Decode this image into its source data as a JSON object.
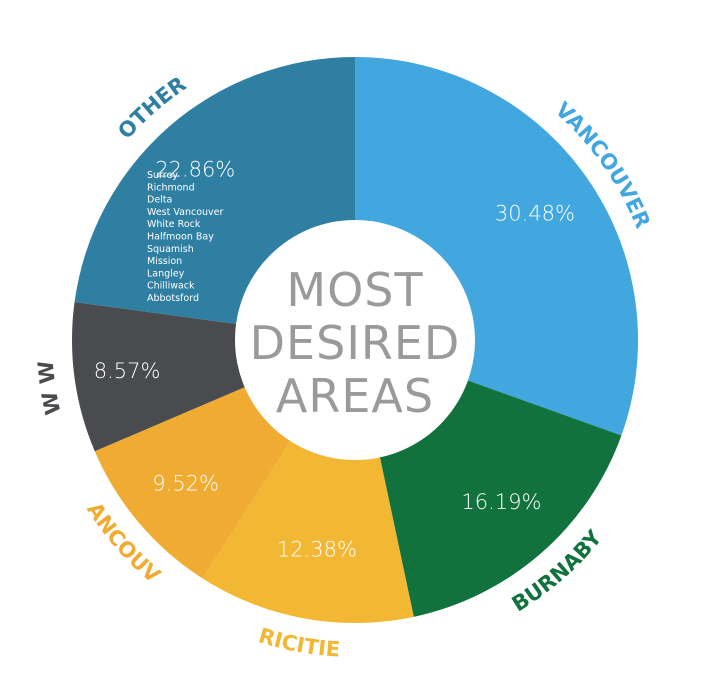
{
  "chart_data": {
    "type": "pie",
    "title": "MOST DESIRED AREAS",
    "title_lines": [
      "MOST",
      "DESIRED",
      "AREAS"
    ],
    "center_hole": true,
    "categories": [
      "VANCOUVER",
      "BURNABY",
      "TRICITIES",
      "N.VANCOUVER",
      "NEW WEST",
      "OTHER"
    ],
    "values": [
      30.48,
      16.19,
      12.38,
      9.52,
      8.57,
      22.86
    ],
    "labels": [
      "30.48%",
      "16.19%",
      "12.38%",
      "9.52%",
      "8.57%",
      "22.86%"
    ],
    "colors": [
      "#41a7de",
      "#11723d",
      "#f2b733",
      "#f0ab32",
      "#4a4b4f",
      "#2e7fa2"
    ],
    "label_colors": [
      "#41a7de",
      "#11723d",
      "#f2b733",
      "#f0ab32",
      "#4a4b4f",
      "#2e7fa2"
    ],
    "other_areas": [
      "Surrey",
      "Richmond",
      "Delta",
      "West Vancouver",
      "White Rock",
      "Halfmoon Bay",
      "Squamish",
      "Mission",
      "Langley",
      "Chilliwack",
      "Abbotsford"
    ]
  }
}
